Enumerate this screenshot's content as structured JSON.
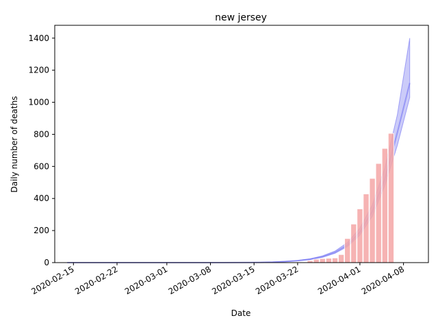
{
  "chart_data": {
    "type": "bar",
    "title": "new jersey",
    "xlabel": "Date",
    "ylabel": "Daily number of deaths",
    "ylim": [
      0,
      1480
    ],
    "xlim": [
      "2020-02-12",
      "2020-04-12"
    ],
    "y_ticks": [
      0,
      200,
      400,
      600,
      800,
      1000,
      1200,
      1400
    ],
    "x_ticks": [
      "2020-02-15",
      "2020-02-22",
      "2020-03-01",
      "2020-03-08",
      "2020-03-15",
      "2020-03-22",
      "2020-04-01",
      "2020-04-08"
    ],
    "grid": false,
    "legend": "none",
    "colors": {
      "bars": "#f4a6a6",
      "bars_edge": "#ffffff",
      "band": "#6f6ff2",
      "band_fill": "#b9b9f7",
      "axis": "#000000"
    },
    "bars": {
      "dates": [
        "2020-03-24",
        "2020-03-25",
        "2020-03-26",
        "2020-03-27",
        "2020-03-28",
        "2020-03-29",
        "2020-03-30",
        "2020-03-31",
        "2020-04-01",
        "2020-04-02",
        "2020-04-03",
        "2020-04-04",
        "2020-04-05",
        "2020-04-06"
      ],
      "values": [
        12,
        21,
        25,
        27,
        29,
        50,
        150,
        240,
        335,
        428,
        525,
        618,
        712,
        806
      ]
    },
    "projection": {
      "dates": [
        "2020-02-14",
        "2020-03-10",
        "2020-03-15",
        "2020-03-18",
        "2020-03-20",
        "2020-03-22",
        "2020-03-24",
        "2020-03-26",
        "2020-03-28",
        "2020-03-30",
        "2020-04-01",
        "2020-04-03",
        "2020-04-05",
        "2020-04-07",
        "2020-04-09"
      ],
      "lower": [
        0,
        0,
        1,
        3,
        6,
        11,
        19,
        33,
        58,
        100,
        172,
        290,
        480,
        730,
        1030
      ],
      "median": [
        0,
        0,
        1,
        3,
        7,
        12,
        21,
        37,
        64,
        110,
        190,
        320,
        520,
        810,
        1120
      ],
      "upper": [
        0,
        0,
        1,
        4,
        8,
        14,
        24,
        42,
        72,
        125,
        215,
        360,
        590,
        920,
        1400
      ]
    }
  }
}
